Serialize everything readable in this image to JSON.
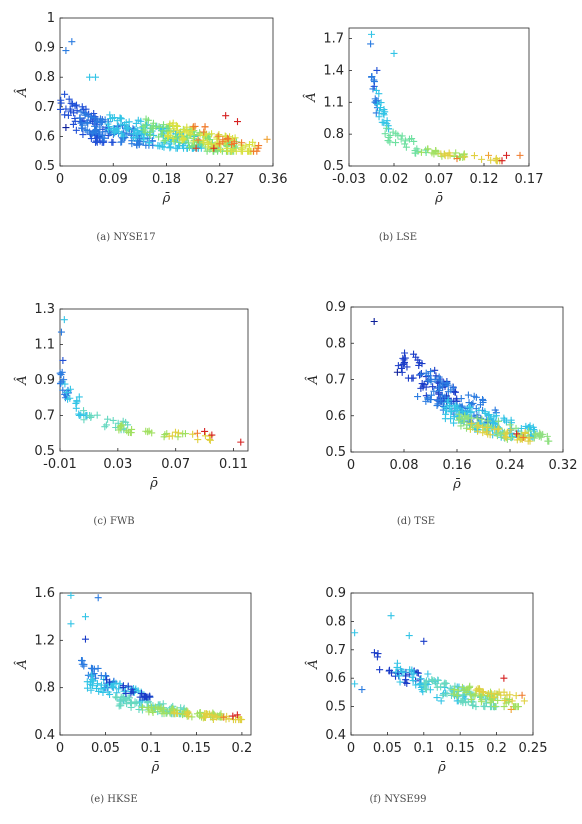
{
  "colors": {
    "axis": "#262626",
    "caption": "#4a4a4a"
  },
  "chart_data": [
    {
      "type": "scatter",
      "marker": "+",
      "caption": "(a) NYSE17",
      "xlabel": "ρ̄",
      "ylabel": "Â",
      "xlim": [
        0,
        0.36
      ],
      "ylim": [
        0.5,
        1.0
      ],
      "xticks": [
        "0",
        "0.09",
        "0.18",
        "0.27",
        "0.36"
      ],
      "yticks": [
        "0.5",
        "0.6",
        "0.7",
        "0.8",
        "0.9",
        "1"
      ],
      "clusters": [
        {
          "x": [
            0.0,
            0.09
          ],
          "y": [
            0.58,
            0.78
          ],
          "n": 70,
          "color": "#1f4fd6"
        },
        {
          "x": [
            0.03,
            0.16
          ],
          "y": [
            0.57,
            0.7
          ],
          "n": 90,
          "color": "#2a7be0"
        },
        {
          "x": [
            0.08,
            0.24
          ],
          "y": [
            0.56,
            0.7
          ],
          "n": 110,
          "color": "#33c4e6"
        },
        {
          "x": [
            0.14,
            0.3
          ],
          "y": [
            0.55,
            0.68
          ],
          "n": 110,
          "color": "#7be07b"
        },
        {
          "x": [
            0.18,
            0.33
          ],
          "y": [
            0.55,
            0.67
          ],
          "n": 80,
          "color": "#d8e040"
        },
        {
          "x": [
            0.22,
            0.34
          ],
          "y": [
            0.55,
            0.66
          ],
          "n": 20,
          "color": "#f07a2a"
        }
      ],
      "points": [
        {
          "x": 0.01,
          "y": 0.89,
          "color": "#2a7be0"
        },
        {
          "x": 0.02,
          "y": 0.92,
          "color": "#2a7be0"
        },
        {
          "x": 0.05,
          "y": 0.8,
          "color": "#33c4e6"
        },
        {
          "x": 0.06,
          "y": 0.8,
          "color": "#33c4e6"
        },
        {
          "x": 0.26,
          "y": 0.56,
          "color": "#d62020"
        },
        {
          "x": 0.3,
          "y": 0.65,
          "color": "#d62020"
        },
        {
          "x": 0.28,
          "y": 0.67,
          "color": "#d62020"
        },
        {
          "x": 0.23,
          "y": 0.56,
          "color": "#e04020"
        },
        {
          "x": 0.35,
          "y": 0.59,
          "color": "#f0a030"
        },
        {
          "x": 0.01,
          "y": 0.63,
          "color": "#0b1e9a"
        }
      ]
    },
    {
      "type": "scatter",
      "marker": "+",
      "caption": "(b) LSE",
      "xlabel": "ρ̄",
      "ylabel": "Â",
      "xlim": [
        -0.03,
        0.17
      ],
      "ylim": [
        0.5,
        1.8
      ],
      "xticks": [
        "-0.03",
        "0.02",
        "0.07",
        "0.12",
        "0.17"
      ],
      "yticks": [
        "0.5",
        "0.8",
        "1.1",
        "1.4",
        "1.7"
      ],
      "clusters": [
        {
          "x": [
            -0.005,
            0.003
          ],
          "y": [
            1.0,
            1.5
          ],
          "n": 14,
          "color": "#2a7be0"
        },
        {
          "x": [
            0.0,
            0.015
          ],
          "y": [
            0.85,
            1.3
          ],
          "n": 18,
          "color": "#33c4e6"
        },
        {
          "x": [
            0.01,
            0.06
          ],
          "y": [
            0.62,
            0.9
          ],
          "n": 25,
          "color": "#6ee0a0"
        },
        {
          "x": [
            0.04,
            0.1
          ],
          "y": [
            0.58,
            0.72
          ],
          "n": 20,
          "color": "#a0e060"
        },
        {
          "x": [
            0.07,
            0.14
          ],
          "y": [
            0.55,
            0.65
          ],
          "n": 15,
          "color": "#e0d040"
        }
      ],
      "points": [
        {
          "x": -0.005,
          "y": 1.74,
          "color": "#33c4e6"
        },
        {
          "x": -0.006,
          "y": 1.65,
          "color": "#2a7be0"
        },
        {
          "x": 0.02,
          "y": 1.56,
          "color": "#33c4e6"
        },
        {
          "x": 0.001,
          "y": 1.4,
          "color": "#1f4fd6"
        },
        {
          "x": -0.002,
          "y": 1.25,
          "color": "#1f4fd6"
        },
        {
          "x": 0.14,
          "y": 0.55,
          "color": "#d62020"
        },
        {
          "x": 0.145,
          "y": 0.6,
          "color": "#d62020"
        },
        {
          "x": 0.16,
          "y": 0.6,
          "color": "#f07a2a"
        },
        {
          "x": 0.125,
          "y": 0.6,
          "color": "#f0a030"
        },
        {
          "x": 0.09,
          "y": 0.57,
          "color": "#f07a2a"
        }
      ]
    },
    {
      "type": "scatter",
      "marker": "+",
      "caption": "(c) FWB",
      "xlabel": "ρ̄",
      "ylabel": "Â",
      "xlim": [
        -0.01,
        0.12
      ],
      "ylim": [
        0.5,
        1.3
      ],
      "xticks": [
        "-0.01",
        "0.03",
        "0.07",
        "0.11"
      ],
      "yticks": [
        "0.5",
        "0.7",
        "0.9",
        "1.1",
        "1.3"
      ],
      "clusters": [
        {
          "x": [
            -0.01,
            -0.004
          ],
          "y": [
            0.8,
            1.0
          ],
          "n": 14,
          "color": "#2a7be0"
        },
        {
          "x": [
            -0.008,
            0.01
          ],
          "y": [
            0.7,
            0.92
          ],
          "n": 16,
          "color": "#33c4e6"
        },
        {
          "x": [
            0.005,
            0.04
          ],
          "y": [
            0.62,
            0.76
          ],
          "n": 18,
          "color": "#66d8c0"
        },
        {
          "x": [
            0.03,
            0.08
          ],
          "y": [
            0.58,
            0.66
          ],
          "n": 20,
          "color": "#a0e060"
        },
        {
          "x": [
            0.06,
            0.1
          ],
          "y": [
            0.56,
            0.63
          ],
          "n": 10,
          "color": "#e0d040"
        }
      ],
      "points": [
        {
          "x": -0.007,
          "y": 1.24,
          "color": "#33c4e6"
        },
        {
          "x": -0.009,
          "y": 1.17,
          "color": "#2a7be0"
        },
        {
          "x": -0.008,
          "y": 1.01,
          "color": "#1f4fd6"
        },
        {
          "x": 0.09,
          "y": 0.61,
          "color": "#d62020"
        },
        {
          "x": 0.095,
          "y": 0.59,
          "color": "#d62020"
        },
        {
          "x": 0.115,
          "y": 0.55,
          "color": "#d62020"
        },
        {
          "x": 0.085,
          "y": 0.6,
          "color": "#f07a2a"
        }
      ]
    },
    {
      "type": "scatter",
      "marker": "+",
      "caption": "(d) TSE",
      "xlabel": "ρ̄",
      "ylabel": "Â",
      "xlim": [
        0,
        0.32
      ],
      "ylim": [
        0.5,
        0.9
      ],
      "xticks": [
        "0",
        "0.08",
        "0.16",
        "0.24",
        "0.32"
      ],
      "yticks": [
        "0.5",
        "0.6",
        "0.7",
        "0.8",
        "0.9"
      ],
      "clusters": [
        {
          "x": [
            0.07,
            0.16
          ],
          "y": [
            0.64,
            0.82
          ],
          "n": 70,
          "color": "#1a3cc8"
        },
        {
          "x": [
            0.1,
            0.22
          ],
          "y": [
            0.58,
            0.76
          ],
          "n": 90,
          "color": "#2a7be0"
        },
        {
          "x": [
            0.14,
            0.28
          ],
          "y": [
            0.54,
            0.66
          ],
          "n": 110,
          "color": "#33c4e6"
        },
        {
          "x": [
            0.16,
            0.3
          ],
          "y": [
            0.53,
            0.62
          ],
          "n": 60,
          "color": "#8fe080"
        },
        {
          "x": [
            0.18,
            0.28
          ],
          "y": [
            0.53,
            0.6
          ],
          "n": 30,
          "color": "#e0d040"
        }
      ],
      "points": [
        {
          "x": 0.035,
          "y": 0.86,
          "color": "#0b1e9a"
        },
        {
          "x": 0.25,
          "y": 0.55,
          "color": "#d62020"
        },
        {
          "x": 0.26,
          "y": 0.54,
          "color": "#f07a2a"
        },
        {
          "x": 0.07,
          "y": 0.72,
          "color": "#0b1e9a"
        }
      ]
    },
    {
      "type": "scatter",
      "marker": "+",
      "caption": "(e) HKSE",
      "xlabel": "ρ̄",
      "ylabel": "Â",
      "xlim": [
        0,
        0.21
      ],
      "ylim": [
        0.4,
        1.6
      ],
      "xticks": [
        "0",
        "0.05",
        "0.1",
        "0.15",
        "0.2"
      ],
      "yticks": [
        "0.4",
        "0.8",
        "1.2",
        "1.6"
      ],
      "clusters": [
        {
          "x": [
            0.02,
            0.06
          ],
          "y": [
            0.8,
            1.1
          ],
          "n": 25,
          "color": "#2a7be0"
        },
        {
          "x": [
            0.03,
            0.1
          ],
          "y": [
            0.68,
            0.95
          ],
          "n": 50,
          "color": "#33c4e6"
        },
        {
          "x": [
            0.06,
            0.14
          ],
          "y": [
            0.58,
            0.76
          ],
          "n": 60,
          "color": "#66d8c0"
        },
        {
          "x": [
            0.09,
            0.18
          ],
          "y": [
            0.55,
            0.66
          ],
          "n": 50,
          "color": "#a0e060"
        },
        {
          "x": [
            0.12,
            0.2
          ],
          "y": [
            0.53,
            0.62
          ],
          "n": 30,
          "color": "#e0d040"
        },
        {
          "x": [
            0.05,
            0.1
          ],
          "y": [
            0.72,
            0.9
          ],
          "n": 20,
          "color": "#1a3cc8"
        }
      ],
      "points": [
        {
          "x": 0.012,
          "y": 1.58,
          "color": "#33c4e6"
        },
        {
          "x": 0.042,
          "y": 1.56,
          "color": "#2a7be0"
        },
        {
          "x": 0.012,
          "y": 1.34,
          "color": "#33c4e6"
        },
        {
          "x": 0.028,
          "y": 1.4,
          "color": "#33c4e6"
        },
        {
          "x": 0.028,
          "y": 1.21,
          "color": "#1a3cc8"
        },
        {
          "x": 0.19,
          "y": 0.56,
          "color": "#d62020"
        },
        {
          "x": 0.195,
          "y": 0.57,
          "color": "#d62020"
        },
        {
          "x": 0.18,
          "y": 0.55,
          "color": "#f07a2a"
        }
      ]
    },
    {
      "type": "scatter",
      "marker": "+",
      "caption": "(f) NYSE99",
      "xlabel": "ρ̄",
      "ylabel": "Â",
      "xlim": [
        0,
        0.25
      ],
      "ylim": [
        0.4,
        0.9
      ],
      "xticks": [
        "0",
        "0.05",
        "0.1",
        "0.15",
        "0.2",
        "0.25"
      ],
      "yticks": [
        "0.4",
        "0.5",
        "0.6",
        "0.7",
        "0.8",
        "0.9"
      ],
      "clusters": [
        {
          "x": [
            0.03,
            0.1
          ],
          "y": [
            0.58,
            0.72
          ],
          "n": 25,
          "color": "#1a3cc8"
        },
        {
          "x": [
            0.06,
            0.16
          ],
          "y": [
            0.52,
            0.68
          ],
          "n": 50,
          "color": "#33c4e6"
        },
        {
          "x": [
            0.1,
            0.2
          ],
          "y": [
            0.5,
            0.62
          ],
          "n": 60,
          "color": "#66d8c0"
        },
        {
          "x": [
            0.14,
            0.23
          ],
          "y": [
            0.5,
            0.6
          ],
          "n": 45,
          "color": "#a0e060"
        },
        {
          "x": [
            0.17,
            0.24
          ],
          "y": [
            0.52,
            0.58
          ],
          "n": 20,
          "color": "#e0d040"
        }
      ],
      "points": [
        {
          "x": 0.005,
          "y": 0.76,
          "color": "#33c4e6"
        },
        {
          "x": 0.055,
          "y": 0.82,
          "color": "#33c4e6"
        },
        {
          "x": 0.08,
          "y": 0.75,
          "color": "#33c4e6"
        },
        {
          "x": 0.1,
          "y": 0.73,
          "color": "#1a3cc8"
        },
        {
          "x": 0.015,
          "y": 0.56,
          "color": "#2a7be0"
        },
        {
          "x": 0.005,
          "y": 0.58,
          "color": "#33c4e6"
        },
        {
          "x": 0.21,
          "y": 0.6,
          "color": "#d62020"
        },
        {
          "x": 0.22,
          "y": 0.49,
          "color": "#f0a030"
        },
        {
          "x": 0.235,
          "y": 0.54,
          "color": "#f07a2a"
        }
      ]
    }
  ]
}
